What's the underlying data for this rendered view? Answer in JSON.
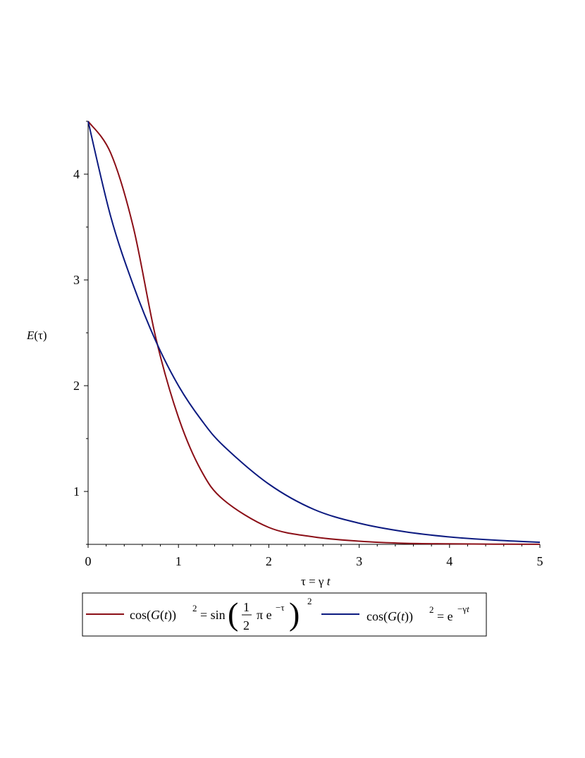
{
  "chart_data": {
    "type": "line",
    "title": "",
    "xlabel": "τ = γ t",
    "ylabel": "E(τ)",
    "xlim": [
      0,
      5
    ],
    "ylim": [
      0.5,
      4.5
    ],
    "x_ticks": [
      "0",
      "1",
      "2",
      "3",
      "4",
      "5"
    ],
    "y_ticks": [
      "1",
      "2",
      "3",
      "4"
    ],
    "grid": false,
    "legend_position": "bottom",
    "series": [
      {
        "name": "cos(G(t))² = sin(½ π e^−τ)²",
        "color": "#8B0F17",
        "x": [
          0,
          0.25,
          0.5,
          0.75,
          1.0,
          1.25,
          1.5,
          2.0,
          2.5,
          3.0,
          3.5,
          4.0,
          4.5,
          5.0
        ],
        "y": [
          4.5,
          4.2,
          3.5,
          2.45,
          1.7,
          1.2,
          0.92,
          0.66,
          0.57,
          0.53,
          0.51,
          0.505,
          0.502,
          0.501
        ]
      },
      {
        "name": "cos(G(t))² = e^−γt",
        "color": "#0C1A80",
        "x": [
          0,
          0.25,
          0.5,
          0.75,
          1.0,
          1.25,
          1.5,
          2.0,
          2.5,
          3.0,
          3.5,
          4.0,
          4.5,
          5.0
        ],
        "y": [
          4.5,
          3.6,
          2.95,
          2.42,
          2.0,
          1.68,
          1.43,
          1.07,
          0.83,
          0.7,
          0.62,
          0.57,
          0.54,
          0.52
        ]
      }
    ]
  }
}
